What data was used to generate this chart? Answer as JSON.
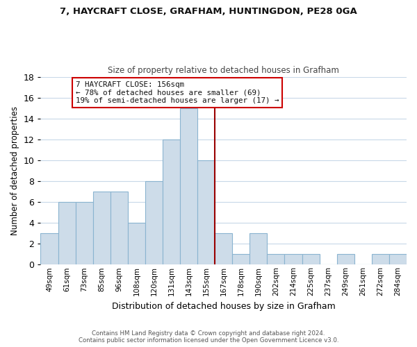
{
  "title1": "7, HAYCRAFT CLOSE, GRAFHAM, HUNTINGDON, PE28 0GA",
  "title2": "Size of property relative to detached houses in Grafham",
  "xlabel": "Distribution of detached houses by size in Grafham",
  "ylabel": "Number of detached properties",
  "bin_labels": [
    "49sqm",
    "61sqm",
    "73sqm",
    "85sqm",
    "96sqm",
    "108sqm",
    "120sqm",
    "131sqm",
    "143sqm",
    "155sqm",
    "167sqm",
    "178sqm",
    "190sqm",
    "202sqm",
    "214sqm",
    "225sqm",
    "237sqm",
    "249sqm",
    "261sqm",
    "272sqm",
    "284sqm"
  ],
  "bar_heights": [
    3,
    6,
    6,
    7,
    7,
    4,
    8,
    12,
    15,
    10,
    3,
    1,
    3,
    1,
    1,
    1,
    0,
    1,
    0,
    1,
    1
  ],
  "bar_color": "#cddce9",
  "bar_edge_color": "#8ab4d0",
  "reference_line_x_label": "155sqm",
  "reference_line_color": "#990000",
  "annotation_title": "7 HAYCRAFT CLOSE: 156sqm",
  "annotation_line1": "← 78% of detached houses are smaller (69)",
  "annotation_line2": "19% of semi-detached houses are larger (17) →",
  "annotation_box_edge_color": "#cc0000",
  "annotation_box_face_color": "#ffffff",
  "ylim": [
    0,
    18
  ],
  "yticks": [
    0,
    2,
    4,
    6,
    8,
    10,
    12,
    14,
    16,
    18
  ],
  "footer_line1": "Contains HM Land Registry data © Crown copyright and database right 2024.",
  "footer_line2": "Contains public sector information licensed under the Open Government Licence v3.0.",
  "bg_color": "#ffffff",
  "grid_color": "#c8d8e8"
}
